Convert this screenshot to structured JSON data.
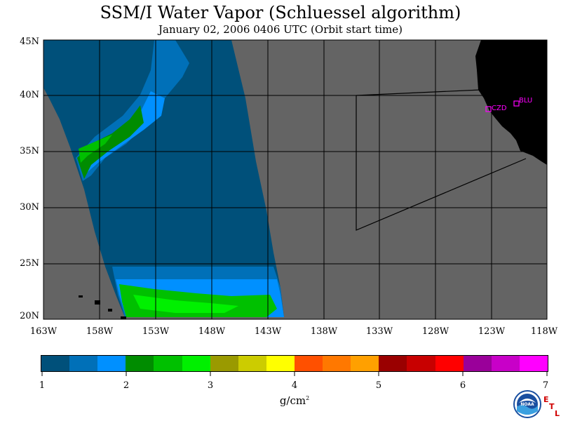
{
  "title": "SSM/I Water Vapor (Schluessel algorithm)",
  "subtitle": "January 02, 2006  0406 UTC  (Orbit start time)",
  "map": {
    "lat_labels": [
      "45N",
      "40N",
      "35N",
      "30N",
      "25N",
      "20N"
    ],
    "lon_labels": [
      "163W",
      "158W",
      "153W",
      "148W",
      "143W",
      "138W",
      "133W",
      "128W",
      "123W",
      "118W"
    ],
    "lat_range": [
      20,
      45
    ],
    "lon_range": [
      -163,
      -118
    ],
    "colors": {
      "background_land_nodata": "#646464",
      "coast_land": "#000000",
      "grid": "#000000",
      "station_marker": "#ff00ff"
    },
    "stations": [
      {
        "code": "CZD"
      },
      {
        "code": "BLU"
      }
    ]
  },
  "colorbar": {
    "units": "g/cm",
    "units_exp": "2",
    "range": [
      1,
      7
    ],
    "tick_labels": [
      "1",
      "2",
      "3",
      "4",
      "5",
      "6",
      "7"
    ],
    "colors": [
      "#00507a",
      "#0070b8",
      "#0090ff",
      "#008c00",
      "#00c000",
      "#00f000",
      "#9a9a00",
      "#cccc00",
      "#ffff00",
      "#ff5000",
      "#ff7800",
      "#ffa000",
      "#9a0000",
      "#c80000",
      "#ff0000",
      "#9a009a",
      "#c800c8",
      "#ff00ff"
    ]
  },
  "logo": {
    "name": "noaa-logo",
    "text": "NOAA"
  },
  "lab_mark": {
    "letters": [
      "E",
      "T",
      "L"
    ]
  }
}
